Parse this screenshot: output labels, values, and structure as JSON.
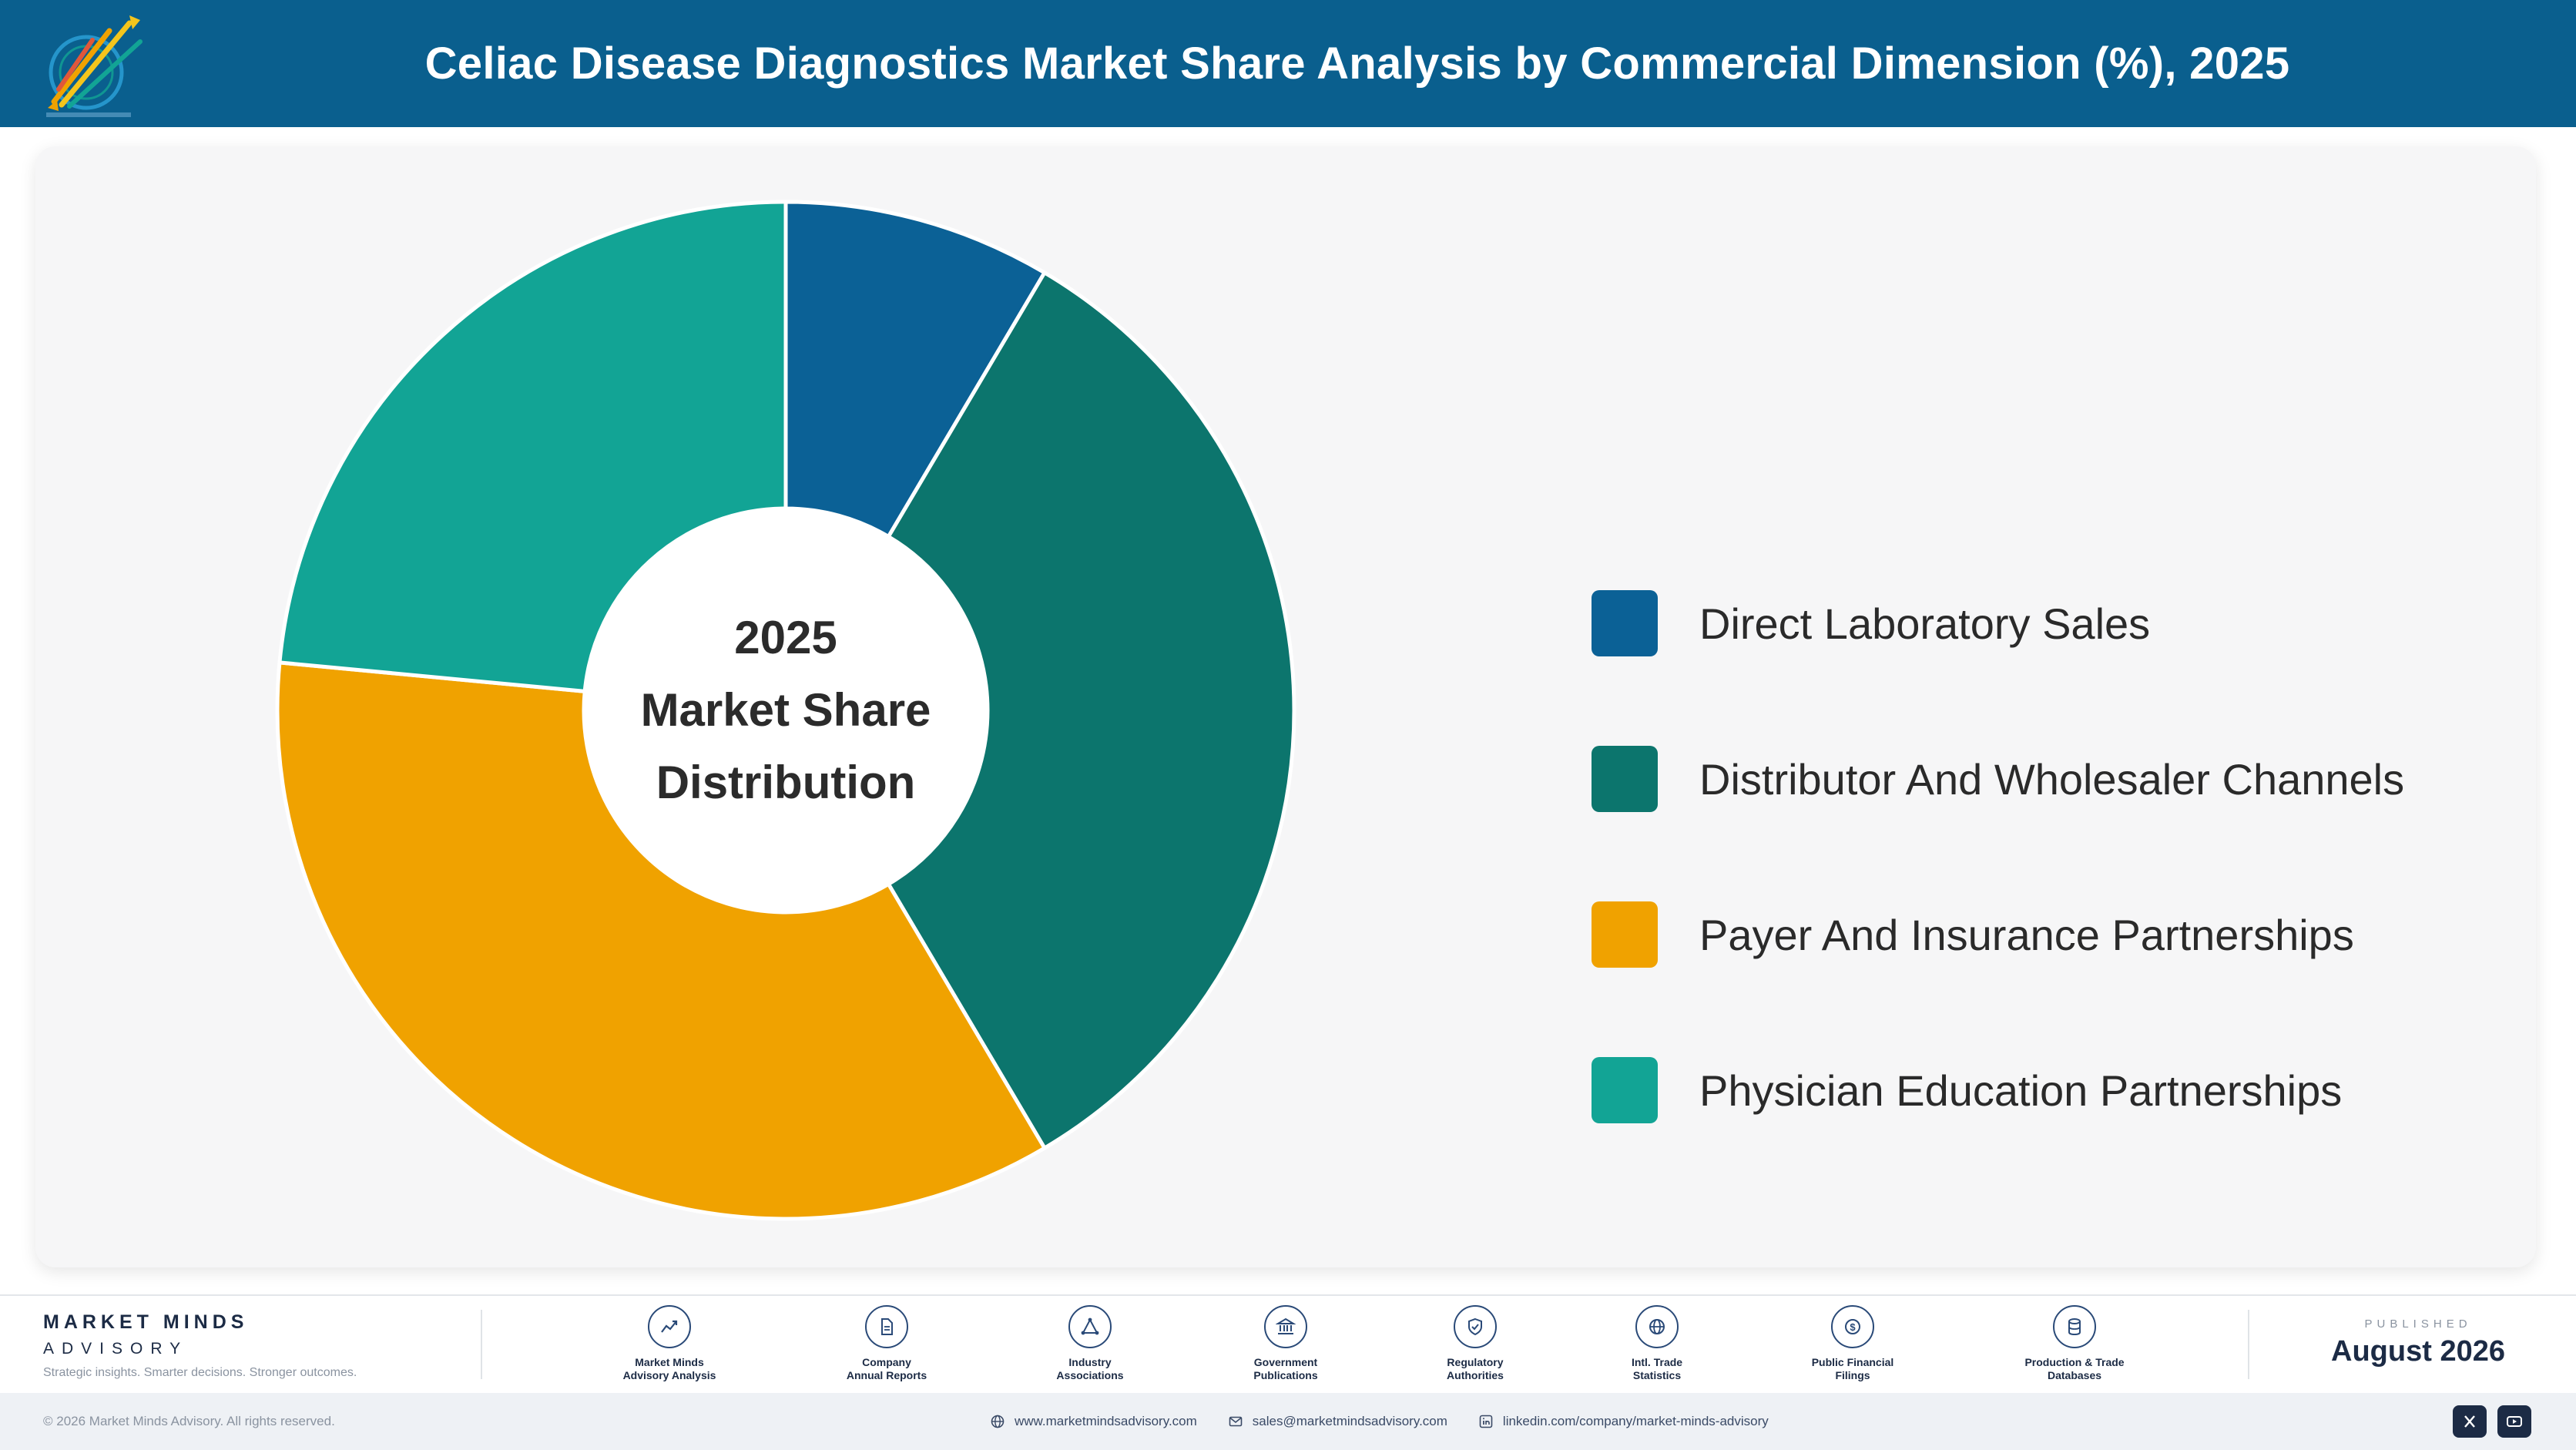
{
  "header": {
    "title": "Celiac Disease Diagnostics Market Share Analysis by Commercial Dimension (%), 2025",
    "logo_icon": "market-minds-logo"
  },
  "chart_data": {
    "type": "pie",
    "variant": "donut",
    "center_label": [
      "2025",
      "Market Share",
      "Distribution"
    ],
    "categories": [
      "Direct Laboratory Sales",
      "Distributor And Wholesaler Channels",
      "Payer And Insurance Partnerships",
      "Physician Education Partnerships"
    ],
    "values": [
      8.5,
      33,
      35,
      23.5
    ],
    "colors": [
      "#0b6196",
      "#0c756d",
      "#f0a200",
      "#12a495"
    ],
    "legend_position": "right"
  },
  "footer": {
    "brand_name": "MARKET MINDS",
    "brand_sub": "ADVISORY",
    "brand_tagline": "Strategic insights. Smarter decisions. Stronger outcomes.",
    "sources": [
      {
        "label": "Market Minds\nAdvisory Analysis",
        "icon": "trend-chart-icon"
      },
      {
        "label": "Company\nAnnual Reports",
        "icon": "document-icon"
      },
      {
        "label": "Industry\nAssociations",
        "icon": "network-icon"
      },
      {
        "label": "Government\nPublications",
        "icon": "government-building-icon"
      },
      {
        "label": "Regulatory\nAuthorities",
        "icon": "shield-check-icon"
      },
      {
        "label": "Intl. Trade\nStatistics",
        "icon": "globe-icon"
      },
      {
        "label": "Public Financial\nFilings",
        "icon": "dollar-coin-icon"
      },
      {
        "label": "Production & Trade\nDatabases",
        "icon": "database-icon"
      }
    ],
    "published_label": "PUBLISHED",
    "published_date": "August 2026",
    "copyright": "© 2026 Market Minds Advisory. All rights reserved.",
    "website": "www.marketmindsadvisory.com",
    "email": "sales@marketmindsadvisory.com",
    "linkedin": "linkedin.com/company/market-minds-advisory",
    "social_icons": [
      "x-icon",
      "youtube-icon"
    ]
  }
}
